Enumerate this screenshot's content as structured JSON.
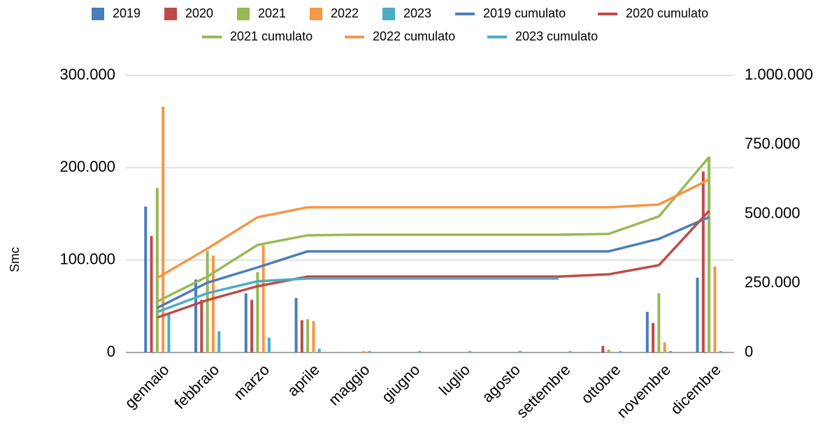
{
  "chart_data": {
    "type": "bar",
    "y_label": "Smc",
    "categories": [
      "gennaio",
      "febbraio",
      "marzo",
      "aprile",
      "maggio",
      "giugno",
      "luglio",
      "agosto",
      "settembre",
      "ottobre",
      "novembre",
      "dicembre"
    ],
    "ylim": [
      0,
      300000
    ],
    "yticks": [
      0,
      {
        "value": 100000,
        "label": "100.000"
      },
      {
        "value": 200000,
        "label": "200.000"
      },
      {
        "value": 300000,
        "label": "300.000"
      }
    ],
    "y2lim": [
      0,
      1000000
    ],
    "y2ticks": [
      0,
      {
        "value": 250000,
        "label": "250.000"
      },
      {
        "value": 500000,
        "label": "500.000"
      },
      {
        "value": 750000,
        "label": "750.000"
      },
      {
        "value": 1000000,
        "label": "1.000.000"
      }
    ],
    "grid": true,
    "legend": "top",
    "series": [
      {
        "name": "2019",
        "type": "bar",
        "color": "#4a7ebb",
        "values": [
          158000,
          79000,
          64000,
          59000,
          0,
          0,
          0,
          0,
          0,
          0,
          44000,
          81000
        ]
      },
      {
        "name": "2020",
        "type": "bar",
        "color": "#be4b48",
        "values": [
          126000,
          57000,
          57000,
          35000,
          0,
          0,
          0,
          0,
          0,
          7000,
          32000,
          196000
        ]
      },
      {
        "name": "2021",
        "type": "bar",
        "color": "#98b954",
        "values": [
          178000,
          110000,
          87000,
          36000,
          0,
          0,
          0,
          0,
          0,
          3000,
          64000,
          212000
        ]
      },
      {
        "name": "2022",
        "type": "bar",
        "color": "#f79646",
        "values": [
          266000,
          105000,
          116000,
          34000,
          1500,
          0,
          0,
          0,
          0,
          0,
          11000,
          93000
        ]
      },
      {
        "name": "2023",
        "type": "bar",
        "color": "#4bacc6",
        "values": [
          43000,
          23000,
          16000,
          4000,
          1500,
          1500,
          1500,
          1500,
          1500,
          1500,
          1500,
          1500
        ]
      },
      {
        "name": "2019 cumulato",
        "type": "line",
        "axis": "y2",
        "color": "#4a7ebb",
        "values": [
          161000,
          252000,
          307000,
          365000,
          365000,
          365000,
          365000,
          365000,
          365000,
          365000,
          410000,
          488000
        ]
      },
      {
        "name": "2020 cumulato",
        "type": "line",
        "axis": "y2",
        "color": "#be4b48",
        "values": [
          126000,
          189000,
          239000,
          274000,
          274000,
          274000,
          274000,
          274000,
          274000,
          282000,
          315000,
          511000
        ]
      },
      {
        "name": "2021 cumulato",
        "type": "line",
        "axis": "y2",
        "color": "#98b954",
        "values": [
          184000,
          274000,
          388000,
          423000,
          425000,
          425000,
          425000,
          425000,
          425000,
          428000,
          491000,
          705000
        ]
      },
      {
        "name": "2022 cumulato",
        "type": "line",
        "axis": "y2",
        "color": "#f79646",
        "values": [
          269000,
          375000,
          488000,
          524000,
          524000,
          524000,
          524000,
          524000,
          524000,
          524000,
          534000,
          624000
        ]
      },
      {
        "name": "2023 cumulato",
        "type": "line",
        "axis": "y2",
        "color": "#4bacc6",
        "values": [
          146000,
          214000,
          257000,
          267000,
          267000,
          267000,
          267000,
          267000,
          267000,
          null,
          null,
          null
        ]
      }
    ]
  }
}
